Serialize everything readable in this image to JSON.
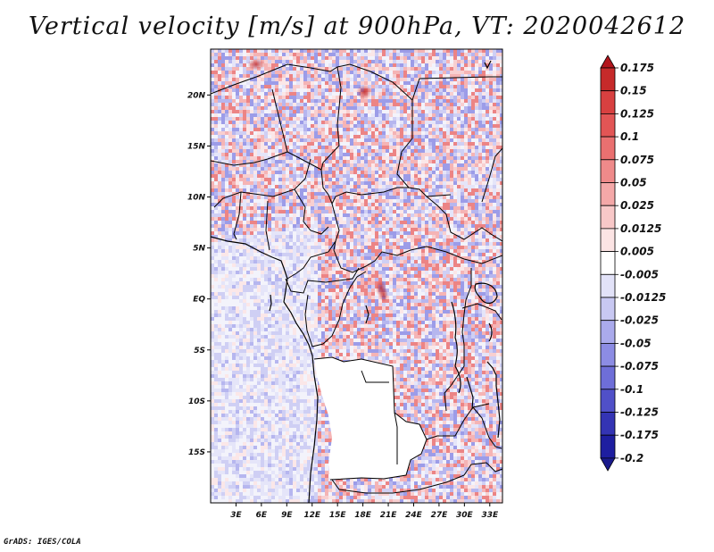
{
  "title": "Vertical velocity [m/s] at 900hPa, VT: 2020042612",
  "footer": "GrADS: IGES/COLA",
  "map": {
    "lon_range": [
      0,
      34.5
    ],
    "lat_range": [
      -20,
      24.5
    ],
    "lat_ticks": [
      {
        "value": 20,
        "label": "20N"
      },
      {
        "value": 15,
        "label": "15N"
      },
      {
        "value": 10,
        "label": "10N"
      },
      {
        "value": 5,
        "label": "5N"
      },
      {
        "value": 0,
        "label": "EQ"
      },
      {
        "value": -5,
        "label": "5S"
      },
      {
        "value": -10,
        "label": "10S"
      },
      {
        "value": -15,
        "label": "15S"
      }
    ],
    "lon_ticks": [
      {
        "value": 3,
        "label": "3E"
      },
      {
        "value": 6,
        "label": "6E"
      },
      {
        "value": 9,
        "label": "9E"
      },
      {
        "value": 12,
        "label": "12E"
      },
      {
        "value": 15,
        "label": "15E"
      },
      {
        "value": 18,
        "label": "18E"
      },
      {
        "value": 21,
        "label": "21E"
      },
      {
        "value": 24,
        "label": "24E"
      },
      {
        "value": 27,
        "label": "27E"
      },
      {
        "value": 30,
        "label": "30E"
      },
      {
        "value": 33,
        "label": "33E"
      }
    ],
    "no_data_region": "southern Congo basin / Angola interior (blank)"
  },
  "colorbar": {
    "levels": [
      "0.175",
      "0.15",
      "0.125",
      "0.1",
      "0.075",
      "0.05",
      "0.025",
      "0.0125",
      "0.005",
      "-0.005",
      "-0.0125",
      "-0.025",
      "-0.05",
      "-0.075",
      "-0.1",
      "-0.125",
      "-0.175",
      "-0.2"
    ],
    "colors": [
      "#b2151c",
      "#c62a2a",
      "#d84040",
      "#e25555",
      "#ea7070",
      "#ef8a8a",
      "#f4a8a8",
      "#f8c8c8",
      "#fce4e4",
      "#ffffff",
      "#e2e2f8",
      "#c8c8f2",
      "#aaaaec",
      "#8c8ce4",
      "#6e6ed8",
      "#5050c8",
      "#3434b4",
      "#1e1ea0",
      "#1a1a8c"
    ]
  }
}
